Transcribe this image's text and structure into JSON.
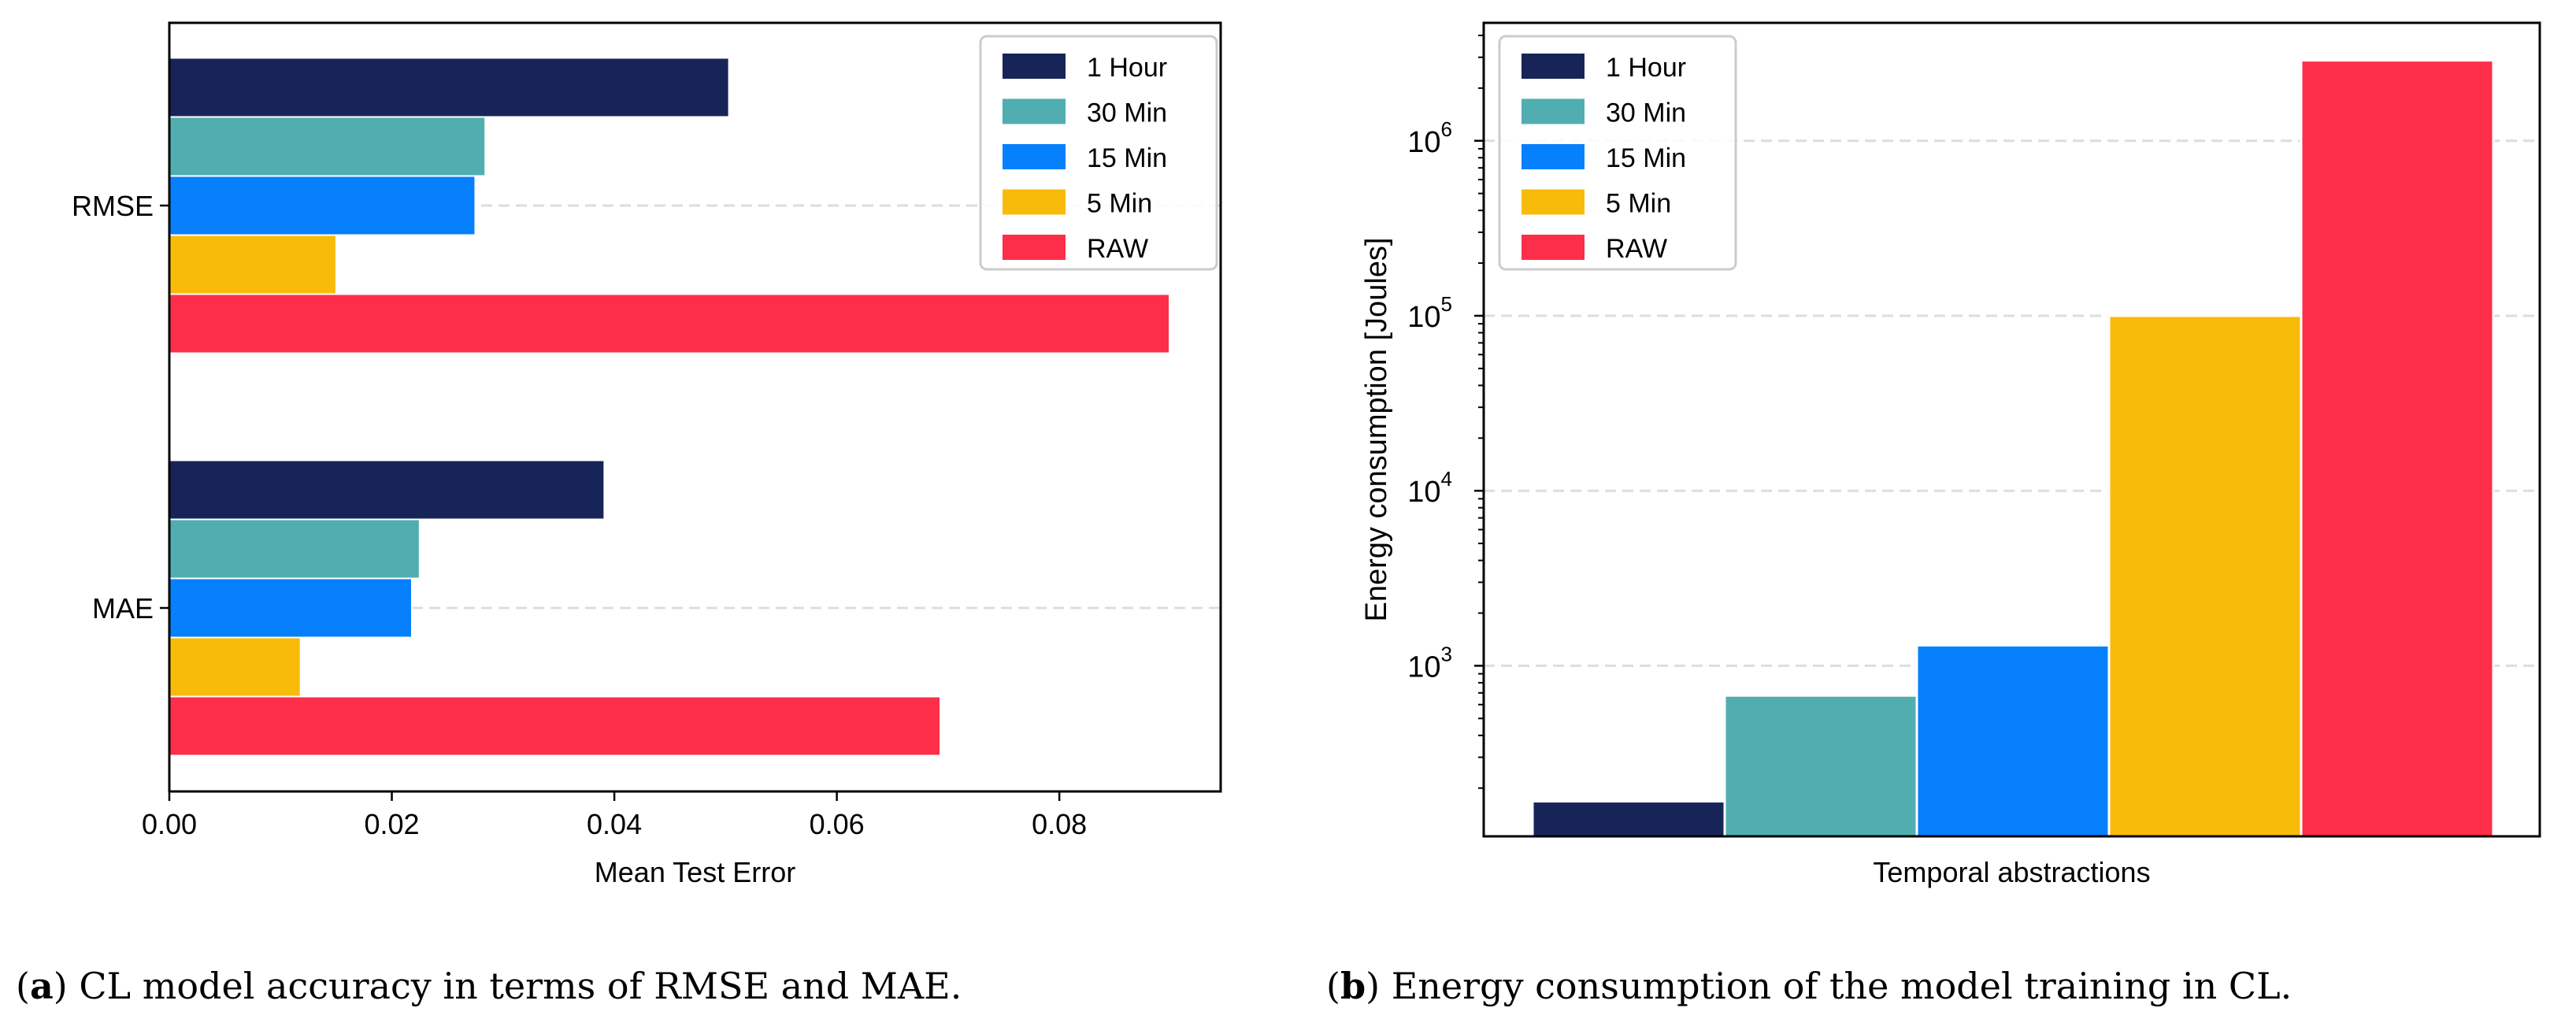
{
  "colors": {
    "1 Hour": "#172457",
    "30 Min": "#50aeb0",
    "15 Min": "#0680fc",
    "5 Min": "#f9bb09",
    "RAW": "#fc2e49",
    "grid": "#dddddd"
  },
  "chart_data": [
    {
      "type": "bar",
      "orientation": "horizontal",
      "categories": [
        "RMSE",
        "MAE"
      ],
      "series": [
        {
          "name": "1 Hour",
          "values": [
            0.0503,
            0.0391
          ]
        },
        {
          "name": "30 Min",
          "values": [
            0.0284,
            0.0225
          ]
        },
        {
          "name": "15 Min",
          "values": [
            0.0275,
            0.0218
          ]
        },
        {
          "name": "5 Min",
          "values": [
            0.015,
            0.0118
          ]
        },
        {
          "name": "RAW",
          "values": [
            0.0899,
            0.0693
          ]
        }
      ],
      "xlabel": "Mean Test Error",
      "ylabel": "",
      "xlim": [
        0,
        0.0945
      ],
      "xticks": [
        "0.00",
        "0.02",
        "0.04",
        "0.06",
        "0.08"
      ],
      "grid": "horizontal dashed",
      "legend": "top-right"
    },
    {
      "type": "bar",
      "yscale": "log",
      "categories": [
        "1 Hour",
        "30 Min",
        "15 Min",
        "5 Min",
        "RAW"
      ],
      "values": [
        168,
        676,
        1309,
        100000,
        2880000
      ],
      "xlabel": "Temporal abstractions",
      "ylabel": "Energy consumption [Joules]",
      "ylim": [
        106,
        4720000
      ],
      "yticks": [
        {
          "base": "10",
          "exp": "3"
        },
        {
          "base": "10",
          "exp": "4"
        },
        {
          "base": "10",
          "exp": "5"
        },
        {
          "base": "10",
          "exp": "6"
        }
      ],
      "grid": "horizontal dashed",
      "legend": "top-left"
    }
  ],
  "captions": {
    "a": {
      "label": "a",
      "text": " CL model accuracy in terms of RMSE and MAE."
    },
    "b": {
      "label": "b",
      "text": " Energy consumption of the model training in CL."
    }
  }
}
